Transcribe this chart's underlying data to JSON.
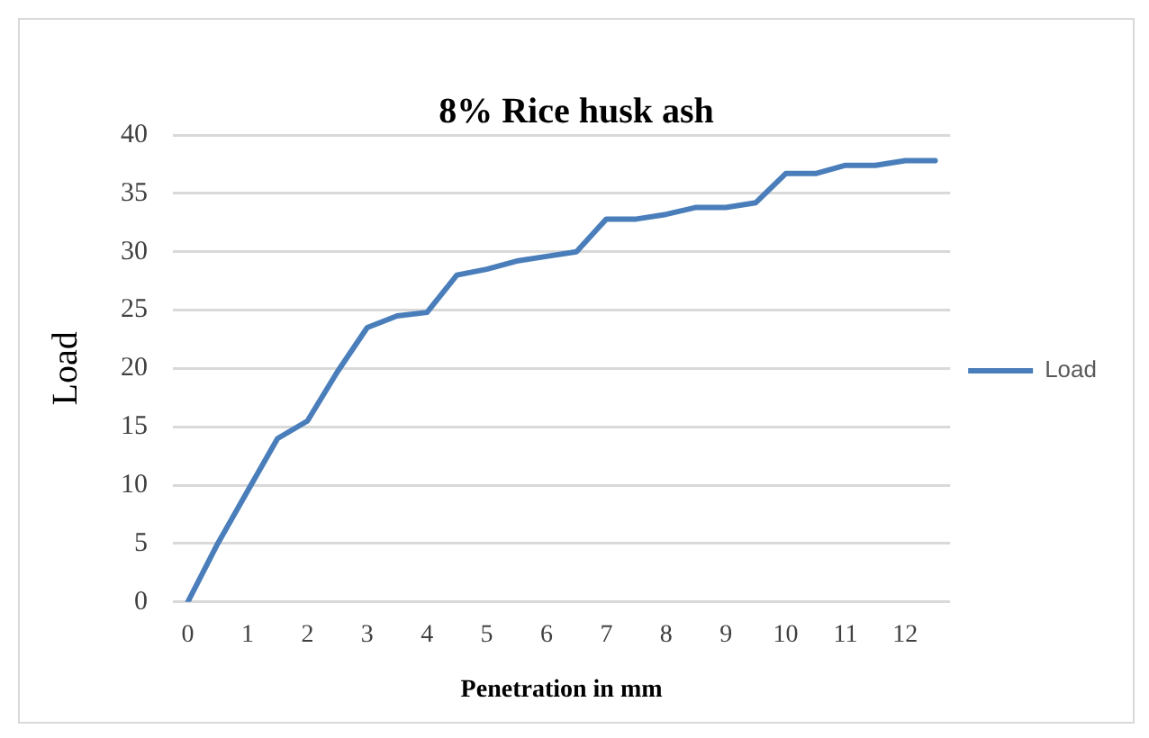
{
  "chart_data": {
    "type": "line",
    "title": "8% Rice husk ash",
    "xlabel": "Penetration in mm",
    "ylabel": "Load",
    "x": [
      0,
      0.5,
      1,
      1.5,
      2,
      2.5,
      3,
      3.5,
      4,
      4.5,
      5,
      5.5,
      6,
      6.5,
      7,
      7.5,
      8,
      8.5,
      9,
      9.5,
      10,
      10.5,
      11,
      11.5,
      12,
      12.5
    ],
    "series": [
      {
        "name": "Load",
        "color": "#4a7ebb",
        "values": [
          0,
          5,
          9.5,
          14,
          15.5,
          19.7,
          23.5,
          24.5,
          24.8,
          28,
          28.5,
          29.2,
          29.6,
          30,
          32.8,
          32.8,
          33.2,
          33.8,
          33.8,
          34.2,
          36.7,
          36.7,
          37.4,
          37.4,
          37.8,
          37.8
        ]
      }
    ],
    "xlim": [
      -0.25,
      12.75
    ],
    "xticks": [
      0,
      1,
      2,
      3,
      4,
      5,
      6,
      7,
      8,
      9,
      10,
      11,
      12
    ],
    "ylim": [
      0,
      40
    ],
    "yticks": [
      0,
      5,
      10,
      15,
      20,
      25,
      30,
      35,
      40
    ],
    "grid": "y",
    "legend": "right",
    "marker": "none",
    "line_style": "solid"
  }
}
